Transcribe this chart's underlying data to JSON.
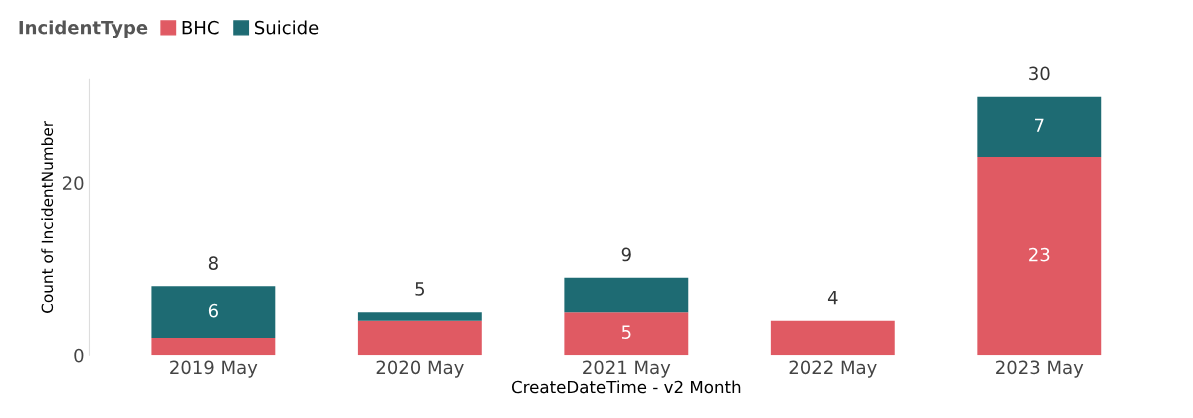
{
  "chart_data": {
    "type": "bar",
    "stacked": true,
    "xlabel": "CreateDateTime - v2 Month",
    "ylabel": "Count of IncidentNumber",
    "legend_title": "IncidentType",
    "legend": "top left",
    "categories": [
      "2019 May",
      "2020 May",
      "2021 May",
      "2022 May",
      "2023 May"
    ],
    "series": [
      {
        "name": "BHC",
        "color": "#e05a63",
        "values": [
          2,
          4,
          5,
          4,
          23
        ],
        "value_labels": [
          null,
          null,
          "5",
          null,
          "23"
        ]
      },
      {
        "name": "Suicide",
        "color": "#1e6b73",
        "values": [
          6,
          1,
          4,
          null,
          7
        ],
        "value_labels": [
          "6",
          null,
          null,
          null,
          "7"
        ]
      }
    ],
    "totals": [
      "8",
      "5",
      "9",
      "4",
      "30"
    ],
    "ylim": [
      0,
      32
    ],
    "yticks": [
      0,
      20
    ],
    "grid": false
  }
}
